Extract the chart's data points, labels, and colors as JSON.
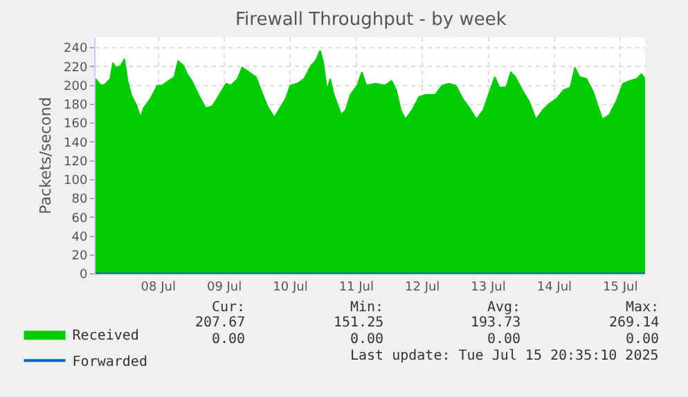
{
  "chart_data": {
    "type": "area",
    "title": "Firewall Throughput - by week",
    "ylabel": "Packets/second",
    "xlim": [
      "2025-07-07T13:10",
      "2025-07-15T21:00"
    ],
    "xticks": [
      {
        "value": "2025-07-08T12:00",
        "label": "08 Jul"
      },
      {
        "value": "2025-07-09T12:00",
        "label": "09 Jul"
      },
      {
        "value": "2025-07-10T12:00",
        "label": "10 Jul"
      },
      {
        "value": "2025-07-11T12:00",
        "label": "11 Jul"
      },
      {
        "value": "2025-07-12T12:00",
        "label": "12 Jul"
      },
      {
        "value": "2025-07-13T12:00",
        "label": "13 Jul"
      },
      {
        "value": "2025-07-14T12:00",
        "label": "14 Jul"
      },
      {
        "value": "2025-07-15T12:00",
        "label": "15 Jul"
      }
    ],
    "ylim": [
      0,
      251
    ],
    "yticks": [
      0,
      20,
      40,
      60,
      80,
      100,
      120,
      140,
      160,
      180,
      200,
      220,
      240
    ],
    "grid": true,
    "legend": "bottom left",
    "series": [
      {
        "name": "Received",
        "color": "#00cc00",
        "x": [
          "2025-07-07T13:10",
          "2025-07-07T15:10",
          "2025-07-07T16:30",
          "2025-07-07T18:30",
          "2025-07-07T19:30",
          "2025-07-07T20:40",
          "2025-07-07T22:20",
          "2025-07-07T23:40",
          "2025-07-08T00:50",
          "2025-07-08T02:10",
          "2025-07-08T04:10",
          "2025-07-08T05:30",
          "2025-07-08T06:40",
          "2025-07-08T09:10",
          "2025-07-08T11:40",
          "2025-07-08T13:20",
          "2025-07-08T15:50",
          "2025-07-08T17:50",
          "2025-07-08T19:10",
          "2025-07-08T21:10",
          "2025-07-08T22:30",
          "2025-07-09T00:10",
          "2025-07-09T02:40",
          "2025-07-09T05:10",
          "2025-07-09T07:40",
          "2025-07-09T10:10",
          "2025-07-09T12:40",
          "2025-07-09T14:20",
          "2025-07-09T16:50",
          "2025-07-09T18:30",
          "2025-07-09T21:00",
          "2025-07-09T23:30",
          "2025-07-10T02:00",
          "2025-07-10T03:40",
          "2025-07-10T06:10",
          "2025-07-10T07:50",
          "2025-07-10T10:20",
          "2025-07-10T12:00",
          "2025-07-10T14:30",
          "2025-07-10T17:00",
          "2025-07-10T19:30",
          "2025-07-10T21:10",
          "2025-07-10T22:50",
          "2025-07-11T00:00",
          "2025-07-11T01:20",
          "2025-07-11T02:30",
          "2025-07-11T03:50",
          "2025-07-11T06:30",
          "2025-07-11T08:10",
          "2025-07-11T09:50",
          "2025-07-11T12:20",
          "2025-07-11T14:00",
          "2025-07-11T15:40",
          "2025-07-11T19:00",
          "2025-07-11T22:20",
          "2025-07-12T00:50",
          "2025-07-12T02:30",
          "2025-07-12T04:10",
          "2025-07-12T05:50",
          "2025-07-12T08:20",
          "2025-07-12T10:50",
          "2025-07-12T13:20",
          "2025-07-12T16:40",
          "2025-07-12T19:10",
          "2025-07-12T21:40",
          "2025-07-13T00:10",
          "2025-07-13T02:40",
          "2025-07-13T05:10",
          "2025-07-13T07:40",
          "2025-07-13T10:10",
          "2025-07-13T12:40",
          "2025-07-13T14:20",
          "2025-07-13T16:00",
          "2025-07-13T18:30",
          "2025-07-13T20:10",
          "2025-07-13T21:50",
          "2025-07-14T00:20",
          "2025-07-14T02:50",
          "2025-07-14T05:20",
          "2025-07-14T07:50",
          "2025-07-14T10:20",
          "2025-07-14T12:50",
          "2025-07-14T15:20",
          "2025-07-14T17:50",
          "2025-07-14T19:30",
          "2025-07-14T21:10",
          "2025-07-14T23:40",
          "2025-07-15T02:10",
          "2025-07-15T03:50",
          "2025-07-15T05:30",
          "2025-07-15T08:00",
          "2025-07-15T10:30",
          "2025-07-15T13:00",
          "2025-07-15T15:30",
          "2025-07-15T18:00",
          "2025-07-15T19:40",
          "2025-07-15T21:00"
        ],
        "values": [
          207,
          200,
          201,
          207,
          224,
          219,
          221,
          228,
          205,
          190,
          178,
          166,
          176,
          186,
          200,
          200,
          205,
          209,
          226,
          221,
          212,
          205,
          190,
          176,
          178,
          190,
          202,
          200,
          207,
          219,
          214,
          209,
          190,
          178,
          166,
          174,
          186,
          200,
          202,
          207,
          221,
          226,
          237,
          224,
          195,
          207,
          190,
          169,
          174,
          190,
          200,
          214,
          200,
          202,
          200,
          205,
          195,
          174,
          164,
          174,
          188,
          190,
          190,
          200,
          202,
          200,
          186,
          176,
          164,
          174,
          195,
          209,
          198,
          198,
          214,
          209,
          195,
          183,
          164,
          174,
          181,
          186,
          195,
          198,
          219,
          209,
          207,
          193,
          178,
          164,
          169,
          183,
          202,
          205,
          207,
          212,
          207
        ]
      },
      {
        "name": "Forwarded",
        "color": "#0066b3",
        "type": "line",
        "x": [
          "2025-07-07T13:10",
          "2025-07-15T21:00"
        ],
        "values": [
          0,
          0
        ]
      }
    ],
    "annotations": [
      "Cur:",
      "Min:",
      "Avg:",
      "Max:",
      "207.67",
      "151.25",
      "193.73",
      "269.14",
      "0.00",
      "0.00",
      "0.00",
      "0.00",
      "Last update: Tue Jul 15 20:35:10 2025"
    ]
  }
}
